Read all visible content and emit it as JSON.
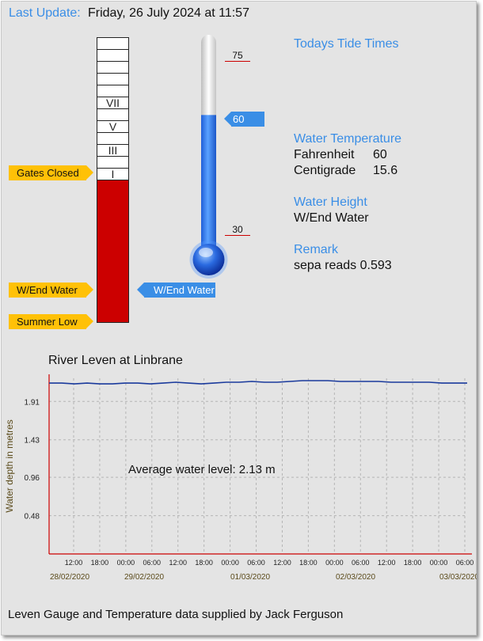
{
  "header": {
    "last_update_label": "Last Update:",
    "last_update_value": "Friday, 26 July 2024 at 11:57"
  },
  "gauge": {
    "levels": [
      "VII",
      "V",
      "III",
      "I"
    ],
    "tags": {
      "gates_closed": "Gates Closed",
      "wend_water": "W/End Water",
      "summer_low": "Summer Low",
      "current": "W/End Water"
    }
  },
  "thermometer": {
    "marks": {
      "high": "75",
      "current": "60",
      "low": "30"
    },
    "fill_level_fahrenheit": 60
  },
  "info": {
    "tide_title": "Todays Tide Times",
    "water_temp_title": "Water Temperature",
    "fahrenheit_label": "Fahrenheit",
    "fahrenheit_value": "60",
    "centigrade_label": "Centigrade",
    "centigrade_value": "15.6",
    "water_height_title": "Water Height",
    "water_height_value": "W/End Water",
    "remark_title": "Remark",
    "remark_value": "sepa reads 0.593"
  },
  "chart_data": {
    "type": "line",
    "title": "River Leven at Linbrane",
    "ylabel": "Water depth in metres",
    "annotation": "Average water level: 2.13 m",
    "y_ticks": [
      "1.91",
      "1.43",
      "0.96",
      "0.48"
    ],
    "x_time_ticks": [
      "12:00",
      "18:00",
      "00:00",
      "06:00",
      "12:00",
      "18:00",
      "00:00",
      "06:00",
      "12:00",
      "18:00",
      "00:00",
      "06:00",
      "12:00",
      "18:00",
      "00:00",
      "06:00"
    ],
    "x_date_ticks": [
      "28/02/2020",
      "29/02/2020",
      "01/03/2020",
      "02/03/2020",
      "03/03/2020"
    ],
    "ylim": [
      0,
      2.2
    ],
    "series": [
      {
        "values": [
          2.14,
          2.14,
          2.13,
          2.14,
          2.13,
          2.13,
          2.14,
          2.14,
          2.13,
          2.14,
          2.15,
          2.14,
          2.13,
          2.14,
          2.15,
          2.15,
          2.16,
          2.15,
          2.15,
          2.16,
          2.17,
          2.17,
          2.17,
          2.16,
          2.16,
          2.16,
          2.16,
          2.15,
          2.15,
          2.15,
          2.15,
          2.14,
          2.14,
          2.14
        ],
        "color": "#1a3a9c"
      }
    ],
    "grid": true
  },
  "footer": {
    "credit": "Leven Gauge and Temperature data supplied by Jack Ferguson"
  }
}
